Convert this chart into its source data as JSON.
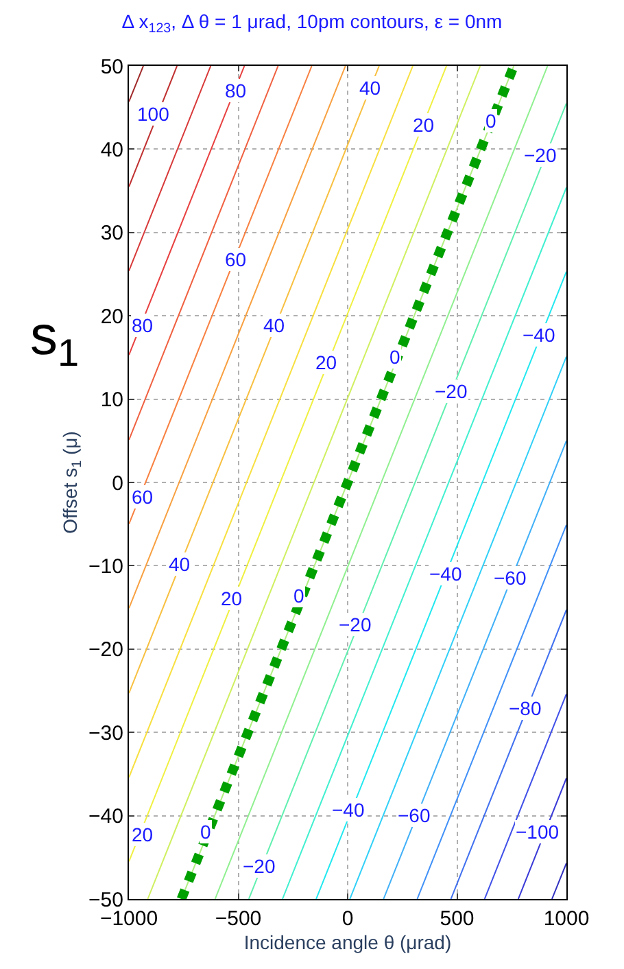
{
  "chart_data": {
    "type": "line",
    "title": "Δ x$_{123}$, Δ θ = 1 μrad, 10pm contours, ε = 0nm",
    "xlabel": "Incidence angle θ (μrad)",
    "ylabel": "Offset s$_{1}$ (μ)",
    "xlim": [
      -1000,
      1000
    ],
    "ylim": [
      -50,
      50
    ],
    "xticks": [
      -1000,
      -500,
      0,
      500,
      1000
    ],
    "yticks": [
      -50,
      -40,
      -30,
      -20,
      -10,
      0,
      10,
      20,
      30,
      40,
      50
    ],
    "grid": true,
    "marker": "none",
    "line_style": "solid",
    "series": [
      {
        "color": "#3030c0",
        "x": [
          934,
          1000
        ],
        "values": [
          -50,
          -45.7
        ]
      },
      {
        "color": "#3a3ad8",
        "x": [
          780,
          1000
        ],
        "values": [
          -50,
          -35.5
        ]
      },
      {
        "color": "#4050e8",
        "x": [
          626,
          1000
        ],
        "values": [
          -50,
          -25.4
        ]
      },
      {
        "color": "#4070f0",
        "x": [
          472,
          1000
        ],
        "values": [
          -50,
          -15.3
        ]
      },
      {
        "color": "#4090f8",
        "x": [
          318,
          1000
        ],
        "values": [
          -50,
          -5.1
        ]
      },
      {
        "color": "#40b0f8",
        "x": [
          164,
          1000
        ],
        "values": [
          -50,
          5.0
        ]
      },
      {
        "color": "#30d0f8",
        "x": [
          10,
          1000
        ],
        "values": [
          -50,
          15.1
        ]
      },
      {
        "color": "#20e8f0",
        "x": [
          -144,
          1000
        ],
        "values": [
          -50,
          25.3
        ]
      },
      {
        "color": "#40f0d0",
        "x": [
          -298,
          1000
        ],
        "values": [
          -50,
          35.4
        ]
      },
      {
        "color": "#60f0b0",
        "x": [
          -452,
          1000
        ],
        "values": [
          -50,
          45.5
        ]
      },
      {
        "color": "#90f090",
        "x": [
          -606,
          914
        ],
        "values": [
          -50,
          50
        ]
      },
      {
        "color": "#b0f080",
        "x": [
          -760,
          760
        ],
        "values": [
          -50,
          50
        ]
      },
      {
        "color": "#d0f060",
        "x": [
          -914,
          606
        ],
        "values": [
          -50,
          50
        ]
      },
      {
        "color": "#f0f040",
        "x": [
          -1000,
          452
        ],
        "values": [
          -45.5,
          50
        ]
      },
      {
        "color": "#f8e040",
        "x": [
          -1000,
          298
        ],
        "values": [
          -35.4,
          50
        ]
      },
      {
        "color": "#f8c040",
        "x": [
          -1000,
          144
        ],
        "values": [
          -25.3,
          50
        ]
      },
      {
        "color": "#f8a040",
        "x": [
          -1000,
          -10
        ],
        "values": [
          -15.1,
          50
        ]
      },
      {
        "color": "#f88040",
        "x": [
          -1000,
          -164
        ],
        "values": [
          -5.0,
          50
        ]
      },
      {
        "color": "#f06040",
        "x": [
          -1000,
          -318
        ],
        "values": [
          5.1,
          50
        ]
      },
      {
        "color": "#e84040",
        "x": [
          -1000,
          -472
        ],
        "values": [
          15.3,
          50
        ]
      },
      {
        "color": "#d83838",
        "x": [
          -1000,
          -626
        ],
        "values": [
          25.4,
          50
        ]
      },
      {
        "color": "#c03030",
        "x": [
          -1000,
          -780
        ],
        "values": [
          35.5,
          50
        ]
      },
      {
        "color": "#a02828",
        "x": [
          -1000,
          -934
        ],
        "values": [
          45.7,
          50
        ]
      },
      {
        "color": "#00a000",
        "x": [
          -760,
          760
        ],
        "values": [
          -50,
          50
        ],
        "line_style": "dotted"
      }
    ],
    "annotations": [
      {
        "text": "100",
        "x": -887,
        "y": 44.2
      },
      {
        "text": "80",
        "x": -511,
        "y": 47
      },
      {
        "text": "40",
        "x": 103,
        "y": 47.4
      },
      {
        "text": "20",
        "x": 348,
        "y": 42.9
      },
      {
        "text": "0",
        "x": 655,
        "y": 43.4
      },
      {
        "text": "−20",
        "x": 880,
        "y": 39.3
      },
      {
        "text": "60",
        "x": -511,
        "y": 26.8
      },
      {
        "text": "80",
        "x": -940,
        "y": 18.9
      },
      {
        "text": "40",
        "x": -335,
        "y": 18.9
      },
      {
        "text": "20",
        "x": -97,
        "y": 14.4
      },
      {
        "text": "0",
        "x": 216,
        "y": 15
      },
      {
        "text": "−20",
        "x": 473,
        "y": 11
      },
      {
        "text": "−40",
        "x": 875,
        "y": 17.7
      },
      {
        "text": "60",
        "x": -940,
        "y": -1.7
      },
      {
        "text": "40",
        "x": -768,
        "y": -9.8
      },
      {
        "text": "20",
        "x": -530,
        "y": -13.9
      },
      {
        "text": "0",
        "x": -223,
        "y": -13.6
      },
      {
        "text": "−20",
        "x": 34,
        "y": -17
      },
      {
        "text": "−40",
        "x": 448,
        "y": -11
      },
      {
        "text": "−60",
        "x": 743,
        "y": -11.5
      },
      {
        "text": "−80",
        "x": 812,
        "y": -27.1
      },
      {
        "text": "−40",
        "x": 3,
        "y": -39.3
      },
      {
        "text": "−60",
        "x": 304,
        "y": -40
      },
      {
        "text": "−100",
        "x": 870,
        "y": -42
      },
      {
        "text": "20",
        "x": -940,
        "y": -42.3
      },
      {
        "text": "0",
        "x": -649,
        "y": -41.9
      },
      {
        "text": "−20",
        "x": -404,
        "y": -46
      },
      "s$_{1}$"
    ]
  }
}
